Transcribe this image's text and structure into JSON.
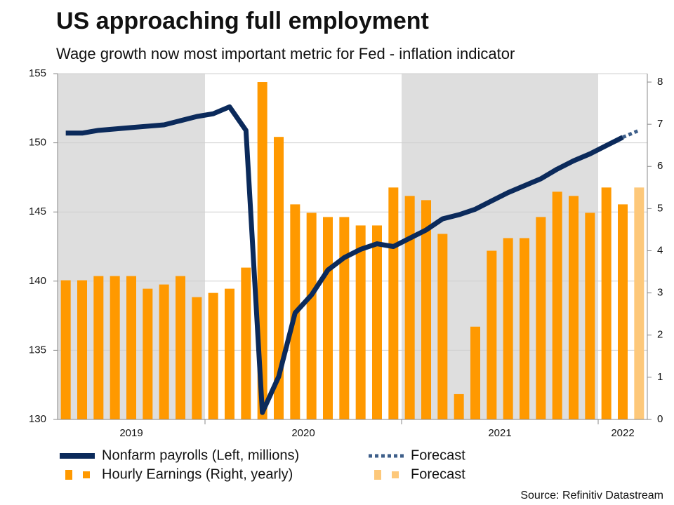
{
  "chart_data": {
    "type": "combo",
    "title": "US approaching full employment",
    "subtitle": "Wage growth now most important metric for Fed - inflation indicator",
    "source": "Source: Refinitiv Datastream",
    "categories": [
      "2019",
      null,
      null,
      null,
      null,
      null,
      null,
      null,
      null,
      "2020",
      null,
      null,
      null,
      null,
      null,
      null,
      null,
      null,
      null,
      null,
      null,
      "2021",
      null,
      null,
      null,
      null,
      null,
      null,
      null,
      null,
      null,
      null,
      null,
      "2022",
      null,
      null
    ],
    "ylim": [
      130,
      155
    ],
    "yticks": [
      130,
      135,
      140,
      145,
      150,
      155
    ],
    "y2lim": [
      0,
      8.2
    ],
    "y2ticks": [
      0,
      1,
      2,
      3,
      4,
      5,
      6,
      7,
      8
    ],
    "grid": true,
    "shade_alternate_years": true,
    "shade_color": "#dedede",
    "series": [
      {
        "name": "Nonfarm payrolls (Left, millions)",
        "type": "line",
        "axis": "y",
        "color": "#0b2a5b",
        "dashed": false,
        "values": [
          150.7,
          150.7,
          150.9,
          151.0,
          151.1,
          151.2,
          151.3,
          151.6,
          151.9,
          152.1,
          152.6,
          150.9,
          130.5,
          133.1,
          137.7,
          139.0,
          140.8,
          141.7,
          142.3,
          142.7,
          142.5,
          143.1,
          143.7,
          144.5,
          144.8,
          145.2,
          145.8,
          146.4,
          146.9,
          147.4,
          148.1,
          148.7,
          149.2,
          149.8,
          150.4,
          null
        ]
      },
      {
        "name": "Forecast",
        "type": "line",
        "axis": "y",
        "color": "#3e5f8a",
        "dashed": true,
        "values": [
          null,
          null,
          null,
          null,
          null,
          null,
          null,
          null,
          null,
          null,
          null,
          null,
          null,
          null,
          null,
          null,
          null,
          null,
          null,
          null,
          null,
          null,
          null,
          null,
          null,
          null,
          null,
          null,
          null,
          null,
          null,
          null,
          null,
          null,
          150.4,
          150.9
        ]
      },
      {
        "name": "Hourly Earnings (Right, yearly)",
        "type": "bar",
        "axis": "y2",
        "color": "#ff9900",
        "values": [
          3.3,
          3.3,
          3.4,
          3.4,
          3.4,
          3.1,
          3.2,
          3.4,
          2.9,
          3.0,
          3.1,
          3.6,
          8.0,
          6.7,
          5.1,
          4.9,
          4.8,
          4.8,
          4.6,
          4.6,
          5.5,
          5.3,
          5.2,
          4.4,
          0.6,
          2.2,
          4.0,
          4.3,
          4.3,
          4.8,
          5.4,
          5.3,
          4.9,
          5.5,
          5.1,
          null
        ]
      },
      {
        "name": "Forecast",
        "type": "bar",
        "axis": "y2",
        "color": "#fdc87a",
        "values": [
          null,
          null,
          null,
          null,
          null,
          null,
          null,
          null,
          null,
          null,
          null,
          null,
          null,
          null,
          null,
          null,
          null,
          null,
          null,
          null,
          null,
          null,
          null,
          null,
          null,
          null,
          null,
          null,
          null,
          null,
          null,
          null,
          null,
          null,
          null,
          5.5
        ]
      }
    ]
  }
}
